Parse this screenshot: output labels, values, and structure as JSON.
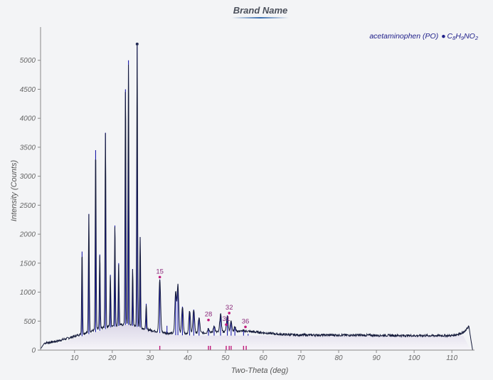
{
  "chart_data": {
    "type": "line",
    "title": "Brand Name",
    "xlabel": "Two-Theta (deg)",
    "ylabel": "Intensity (Counts)",
    "xlim": [
      1,
      116
    ],
    "ylim": [
      0,
      5500
    ],
    "x_ticks": [
      "10",
      "20",
      "30",
      "40",
      "50",
      "60",
      "70",
      "80",
      "90",
      "100",
      "110"
    ],
    "y_ticks": [
      "0",
      "500",
      "1000",
      "1500",
      "2000",
      "2500",
      "3000",
      "3500",
      "4000",
      "4500",
      "5000"
    ],
    "x_tick_values": [
      10,
      20,
      30,
      40,
      50,
      60,
      70,
      80,
      90,
      100,
      110
    ],
    "y_tick_values": [
      0,
      500,
      1000,
      1500,
      2000,
      2500,
      3000,
      3500,
      4000,
      4500,
      5000
    ],
    "grid": false,
    "legend_position": "top-right",
    "legend": {
      "name": "acetaminophen (PO)",
      "formula_parts": [
        "C",
        "8",
        "H",
        "9",
        "NO",
        "2"
      ]
    },
    "colors": {
      "observed": "#141a3a",
      "reference": "#1a1aa8",
      "marker": "#c0187a",
      "background_fill": "#e4e1ec"
    },
    "observed_baseline": [
      [
        1,
        20
      ],
      [
        2,
        120
      ],
      [
        5,
        150
      ],
      [
        8,
        200
      ],
      [
        11,
        260
      ],
      [
        14,
        320
      ],
      [
        17,
        380
      ],
      [
        20,
        420
      ],
      [
        23,
        440
      ],
      [
        26,
        420
      ],
      [
        29,
        360
      ],
      [
        32,
        320
      ],
      [
        35,
        290
      ],
      [
        40,
        290
      ],
      [
        45,
        300
      ],
      [
        50,
        320
      ],
      [
        55,
        330
      ],
      [
        60,
        300
      ],
      [
        65,
        270
      ],
      [
        70,
        260
      ],
      [
        80,
        260
      ],
      [
        90,
        255
      ],
      [
        100,
        250
      ],
      [
        110,
        250
      ],
      [
        112,
        280
      ],
      [
        113.5,
        320
      ],
      [
        114.5,
        420
      ],
      [
        115,
        200
      ],
      [
        115.5,
        0
      ]
    ],
    "observed_peaks": [
      [
        12.0,
        1700
      ],
      [
        13.8,
        2350
      ],
      [
        15.6,
        3450
      ],
      [
        16.7,
        1650
      ],
      [
        18.2,
        3750
      ],
      [
        19.5,
        1300
      ],
      [
        20.7,
        2150
      ],
      [
        21.7,
        1500
      ],
      [
        23.5,
        4500
      ],
      [
        24.3,
        5000
      ],
      [
        25.4,
        1400
      ],
      [
        26.6,
        5250
      ],
      [
        27.4,
        1950
      ],
      [
        29.0,
        800
      ],
      [
        32.6,
        1220
      ],
      [
        36.8,
        1000
      ],
      [
        37.4,
        1130
      ],
      [
        38.6,
        750
      ],
      [
        40.5,
        670
      ],
      [
        41.6,
        700
      ],
      [
        43.0,
        560
      ],
      [
        45.5,
        380
      ],
      [
        47.0,
        420
      ],
      [
        48.7,
        620
      ],
      [
        50.5,
        600
      ],
      [
        51.5,
        500
      ],
      [
        52.5,
        400
      ],
      [
        54.8,
        330
      ],
      [
        56.0,
        280
      ],
      [
        58.3,
        200
      ]
    ],
    "reference_peaks": [
      [
        12.0,
        1700
      ],
      [
        13.8,
        2350
      ],
      [
        15.6,
        3450
      ],
      [
        16.7,
        1650
      ],
      [
        18.2,
        3750
      ],
      [
        19.5,
        1300
      ],
      [
        20.7,
        2150
      ],
      [
        21.7,
        1500
      ],
      [
        23.5,
        4500
      ],
      [
        24.3,
        5000
      ],
      [
        25.4,
        1400
      ],
      [
        26.6,
        5250
      ],
      [
        27.4,
        1950
      ],
      [
        29.0,
        800
      ],
      [
        32.6,
        1220
      ],
      [
        34.5,
        420
      ],
      [
        36.8,
        1000
      ],
      [
        37.4,
        1130
      ],
      [
        38.6,
        750
      ],
      [
        40.5,
        670
      ],
      [
        41.6,
        700
      ],
      [
        43.0,
        560
      ],
      [
        45.5,
        380
      ],
      [
        47.0,
        420
      ],
      [
        48.7,
        620
      ],
      [
        50.5,
        600
      ],
      [
        51.5,
        500
      ],
      [
        52.5,
        400
      ],
      [
        54.8,
        330
      ],
      [
        56.0,
        280
      ]
    ],
    "background_curve": [
      [
        1,
        0
      ],
      [
        5,
        100
      ],
      [
        10,
        200
      ],
      [
        15,
        300
      ],
      [
        20,
        400
      ],
      [
        24,
        440
      ],
      [
        28,
        380
      ],
      [
        32,
        300
      ],
      [
        36,
        260
      ],
      [
        42,
        250
      ],
      [
        50,
        250
      ],
      [
        60,
        250
      ],
      [
        80,
        250
      ],
      [
        100,
        250
      ],
      [
        113,
        250
      ],
      [
        115,
        0
      ]
    ],
    "tick_marks_x": [
      32.6,
      45.5,
      46.0,
      50.2,
      51.0,
      51.5,
      54.8,
      55.5
    ],
    "peak_markers": [
      {
        "label": "15",
        "x": 32.6,
        "y": 1260
      },
      {
        "label": "28",
        "x": 45.5,
        "y": 520
      },
      {
        "label": "31",
        "x": 50.2,
        "y": 440
      },
      {
        "label": "32",
        "x": 51.0,
        "y": 640
      },
      {
        "label": "36",
        "x": 55.3,
        "y": 400
      }
    ],
    "top_marker": {
      "x": 26.6,
      "y": 5280
    }
  }
}
